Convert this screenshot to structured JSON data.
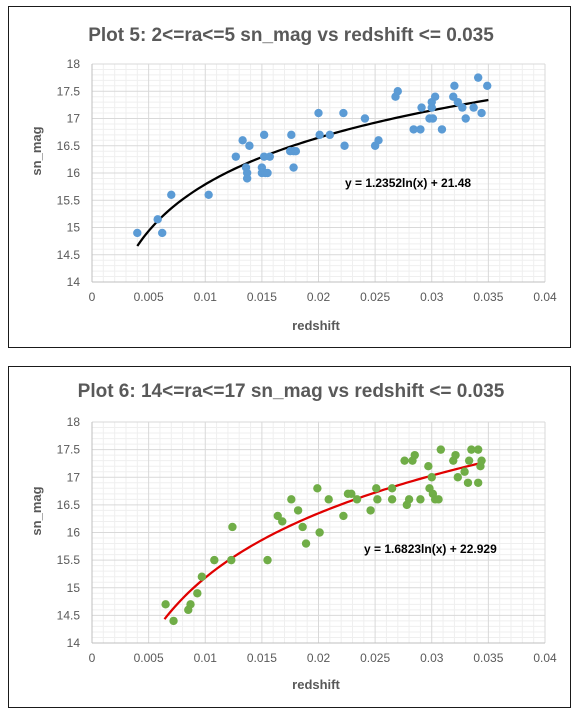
{
  "chart_data": [
    {
      "type": "scatter",
      "title": "Plot 5: 2<=ra<=5 sn_mag vs redshift <= 0.035",
      "xlabel": "redshift",
      "ylabel": "sn_mag",
      "xlim": [
        0,
        0.04
      ],
      "ylim": [
        14,
        18
      ],
      "xticks": [
        0,
        0.005,
        0.01,
        0.015,
        0.02,
        0.025,
        0.03,
        0.035,
        0.04
      ],
      "xtick_labels": [
        "0",
        "0.005",
        "0.01",
        "0.015",
        "0.02",
        "0.025",
        "0.03",
        "0.035",
        "0.04"
      ],
      "yticks": [
        14,
        14.5,
        15,
        15.5,
        16,
        16.5,
        17,
        17.5,
        18
      ],
      "ytick_labels": [
        "14",
        "14.5",
        "15",
        "15.5",
        "16",
        "16.5",
        "17",
        "17.5",
        "18"
      ],
      "grid": true,
      "marker_color": "#5b9bd5",
      "trendline": {
        "type": "log",
        "a": 1.2352,
        "b": 21.48,
        "x_range": [
          0.004,
          0.035
        ],
        "color": "#000000",
        "equation": "y = 1.2352ln(x) + 21.48"
      },
      "x": [
        0.004,
        0.0058,
        0.0062,
        0.007,
        0.0103,
        0.0127,
        0.0133,
        0.0136,
        0.0137,
        0.0137,
        0.0139,
        0.015,
        0.015,
        0.0152,
        0.0152,
        0.0153,
        0.0155,
        0.0157,
        0.0175,
        0.0176,
        0.0178,
        0.0178,
        0.018,
        0.02,
        0.0201,
        0.021,
        0.0222,
        0.0223,
        0.0241,
        0.025,
        0.0253,
        0.0268,
        0.027,
        0.0284,
        0.029,
        0.0291,
        0.0298,
        0.03,
        0.03,
        0.0301,
        0.0303,
        0.0309,
        0.0319,
        0.032,
        0.0323,
        0.0327,
        0.033,
        0.0337,
        0.0341,
        0.0344,
        0.0349
      ],
      "y": [
        14.9,
        15.15,
        14.9,
        15.6,
        15.6,
        16.3,
        16.6,
        16.1,
        16.0,
        15.9,
        16.5,
        16.0,
        16.1,
        16.3,
        16.7,
        16.0,
        16.0,
        16.3,
        16.4,
        16.7,
        16.1,
        16.4,
        16.4,
        17.1,
        16.7,
        16.7,
        17.1,
        16.5,
        17.0,
        16.5,
        16.6,
        17.4,
        17.5,
        16.8,
        16.8,
        17.2,
        17.0,
        17.2,
        17.3,
        17.0,
        17.4,
        16.8,
        17.4,
        17.6,
        17.3,
        17.2,
        17.0,
        17.2,
        17.75,
        17.1,
        17.6
      ]
    },
    {
      "type": "scatter",
      "title": "Plot 6: 14<=ra<=17 sn_mag vs redshift <= 0.035",
      "xlabel": "redshift",
      "ylabel": "sn_mag",
      "xlim": [
        0,
        0.04
      ],
      "ylim": [
        14,
        18
      ],
      "xticks": [
        0,
        0.005,
        0.01,
        0.015,
        0.02,
        0.025,
        0.03,
        0.035,
        0.04
      ],
      "xtick_labels": [
        "0",
        "0.005",
        "0.01",
        "0.015",
        "0.02",
        "0.025",
        "0.03",
        "0.035",
        "0.04"
      ],
      "yticks": [
        14,
        14.5,
        15,
        15.5,
        16,
        16.5,
        17,
        17.5,
        18
      ],
      "ytick_labels": [
        "14",
        "14.5",
        "15",
        "15.5",
        "16",
        "16.5",
        "17",
        "17.5",
        "18"
      ],
      "grid": true,
      "marker_color": "#70ad47",
      "trendline": {
        "type": "log",
        "a": 1.6823,
        "b": 22.929,
        "x_range": [
          0.0064,
          0.0345
        ],
        "color": "#e00000",
        "equation": "y = 1.6823ln(x) + 22.929"
      },
      "x": [
        0.0065,
        0.0072,
        0.0085,
        0.0087,
        0.0093,
        0.0097,
        0.0108,
        0.0123,
        0.0124,
        0.0155,
        0.0164,
        0.0168,
        0.0176,
        0.0182,
        0.0186,
        0.0189,
        0.0199,
        0.0201,
        0.0209,
        0.0222,
        0.0226,
        0.0229,
        0.0234,
        0.0246,
        0.0251,
        0.0252,
        0.0265,
        0.0265,
        0.0276,
        0.0278,
        0.028,
        0.0283,
        0.0285,
        0.029,
        0.0297,
        0.0298,
        0.03,
        0.0301,
        0.0303,
        0.0306,
        0.0308,
        0.0319,
        0.0321,
        0.0323,
        0.0329,
        0.0332,
        0.0333,
        0.0335,
        0.0341,
        0.0341,
        0.0343,
        0.0344
      ],
      "y": [
        14.7,
        14.4,
        14.6,
        14.7,
        14.9,
        15.2,
        15.5,
        15.5,
        16.1,
        15.5,
        16.3,
        16.2,
        16.6,
        16.4,
        16.1,
        15.8,
        16.8,
        16.0,
        16.6,
        16.3,
        16.7,
        16.7,
        16.6,
        16.4,
        16.8,
        16.6,
        16.6,
        16.8,
        17.3,
        16.5,
        16.6,
        17.3,
        17.4,
        16.6,
        17.2,
        16.8,
        17.0,
        16.7,
        16.6,
        16.6,
        17.5,
        17.3,
        17.4,
        17.0,
        17.1,
        16.9,
        17.3,
        17.5,
        17.5,
        16.9,
        17.2,
        17.3
      ]
    }
  ]
}
